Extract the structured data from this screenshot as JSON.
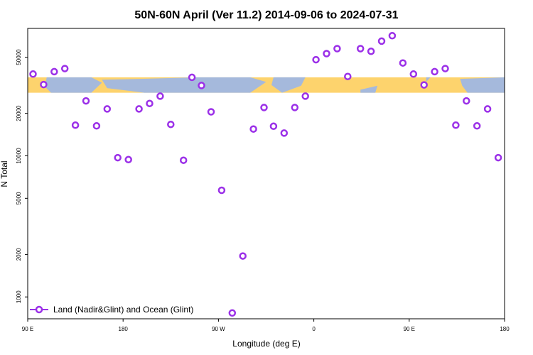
{
  "chart_data": {
    "type": "scatter",
    "title": "50N-60N April (Ver 11.2)   2014-09-06 to 2024-07-31",
    "xlabel": "Longitude (deg E)",
    "ylabel": "N Total",
    "y_scale": "log",
    "x_ticks": [
      {
        "value": 90,
        "label": "90 E"
      },
      {
        "value": 180,
        "label": "180"
      },
      {
        "value": 270,
        "label": "90 W"
      },
      {
        "value": 360,
        "label": "0"
      },
      {
        "value": 450,
        "label": "90 E"
      },
      {
        "value": 540,
        "label": "180"
      }
    ],
    "y_ticks": [
      {
        "value": 1000,
        "label": "1000"
      },
      {
        "value": 2000,
        "label": "2000"
      },
      {
        "value": 5000,
        "label": "5000"
      },
      {
        "value": 10000,
        "label": "10000"
      },
      {
        "value": 20000,
        "label": "20000"
      },
      {
        "value": 50000,
        "label": "50000"
      }
    ],
    "xlim": [
      90,
      540
    ],
    "ylim": [
      700,
      80000
    ],
    "legend": {
      "position": "bottom-left",
      "label": "Land (Nadir&Glint) and Ocean (Glint)"
    },
    "series": [
      {
        "name": "Land (Nadir&Glint) and Ocean (Glint)",
        "color": "#9b30e8",
        "points": [
          [
            95,
            38000
          ],
          [
            105,
            32000
          ],
          [
            115,
            39500
          ],
          [
            125,
            41500
          ],
          [
            135,
            16500
          ],
          [
            145,
            24500
          ],
          [
            155,
            16300
          ],
          [
            165,
            21500
          ],
          [
            175,
            9700
          ],
          [
            185,
            9400
          ],
          [
            195,
            21500
          ],
          [
            205,
            23500
          ],
          [
            215,
            26500
          ],
          [
            225,
            16700
          ],
          [
            237,
            9300
          ],
          [
            245,
            36000
          ],
          [
            254,
            31500
          ],
          [
            263,
            20500
          ],
          [
            273,
            5700
          ],
          [
            283,
            770
          ],
          [
            293,
            1950
          ],
          [
            303,
            15500
          ],
          [
            313,
            22000
          ],
          [
            322,
            16200
          ],
          [
            332,
            14500
          ],
          [
            342,
            22000
          ],
          [
            352,
            26500
          ],
          [
            362,
            48000
          ],
          [
            372,
            53000
          ],
          [
            382,
            57500
          ],
          [
            392,
            36500
          ],
          [
            404,
            57500
          ],
          [
            414,
            55000
          ],
          [
            424,
            65000
          ],
          [
            434,
            71000
          ],
          [
            444,
            45500
          ],
          [
            454,
            38000
          ],
          [
            464,
            31800
          ],
          [
            474,
            39500
          ],
          [
            484,
            41500
          ],
          [
            494,
            16500
          ],
          [
            504,
            24500
          ],
          [
            514,
            16300
          ],
          [
            524,
            21500
          ],
          [
            534,
            9700
          ]
        ]
      }
    ]
  },
  "map_strip": {
    "y_top": 36000,
    "y_bottom": 28000,
    "ocean_color": "#a5b9dc",
    "land_color": "#fdd36d"
  }
}
